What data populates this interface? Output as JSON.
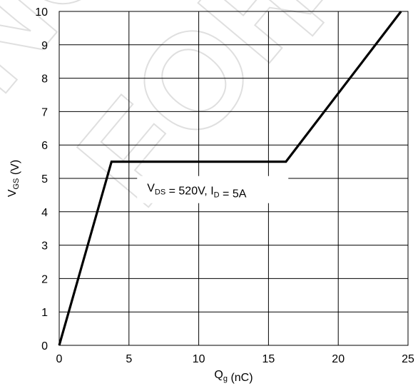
{
  "chart_data": {
    "type": "line",
    "title": "",
    "xlabel": {
      "main": "Q",
      "sub": "g",
      "rest": " (nC)"
    },
    "ylabel": {
      "main": "V",
      "sub": "GS",
      "rest": " (V)"
    },
    "xlim": [
      0,
      25
    ],
    "ylim": [
      0,
      10
    ],
    "xticks": [
      0,
      5,
      10,
      15,
      20,
      25
    ],
    "yticks": [
      0,
      1,
      2,
      3,
      4,
      5,
      6,
      7,
      8,
      9,
      10
    ],
    "grid": true,
    "series": [
      {
        "x": [
          0,
          3.75,
          16.25,
          24.5
        ],
        "y": [
          0,
          5.5,
          5.5,
          10
        ],
        "color": "#000000"
      }
    ],
    "annotation": {
      "parts": [
        {
          "text": "V",
          "sub": "DS"
        },
        {
          "text": " = 520V, I",
          "sub": "D"
        },
        {
          "text": " = 5A",
          "sub": ""
        }
      ],
      "x": 6.3,
      "y": 4.6
    },
    "watermark": "NOT FOR NEW DESIGN"
  }
}
